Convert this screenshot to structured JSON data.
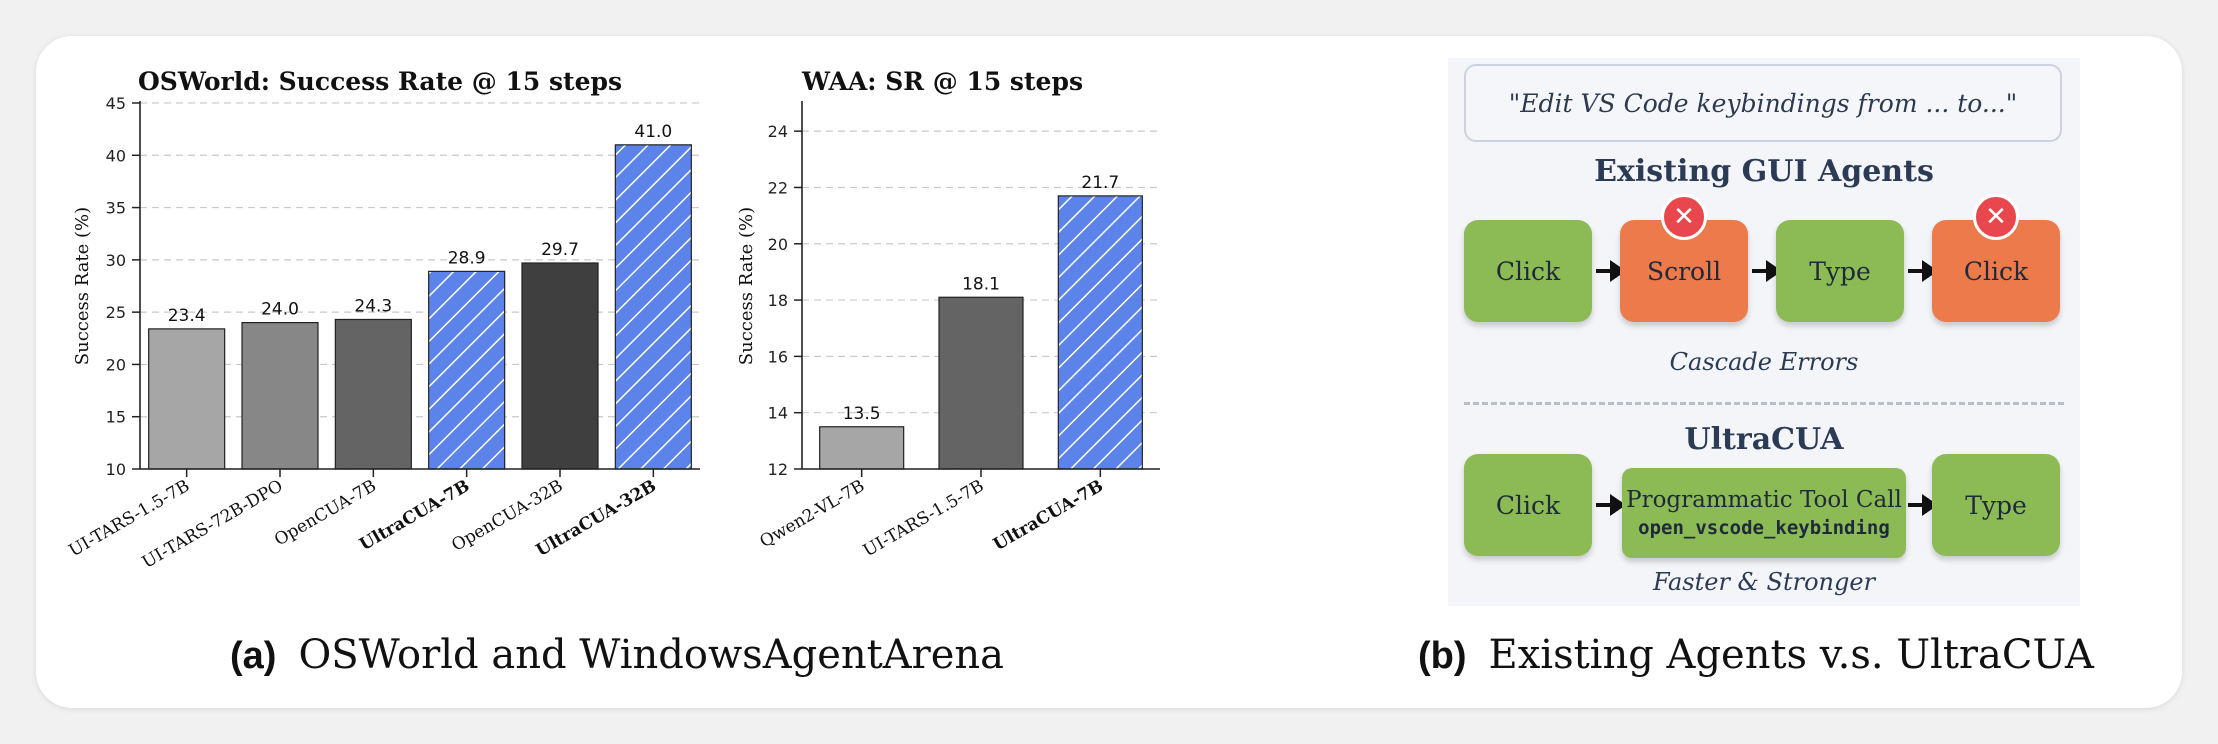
{
  "chart_data": [
    {
      "type": "bar",
      "title": "OSWorld: Success Rate @ 15 steps",
      "ylabel": "Success Rate (%)",
      "ylim": [
        10,
        45
      ],
      "yticks": [
        10,
        15,
        20,
        25,
        30,
        35,
        40,
        45
      ],
      "grid": true,
      "categories": [
        "UI-TARS-1.5-7B",
        "UI-TARS-72B-DPO",
        "OpenCUA-7B",
        "UltraCUA-7B",
        "OpenCUA-32B",
        "UltraCUA-32B"
      ],
      "values": [
        23.4,
        24.0,
        24.3,
        28.9,
        29.7,
        41.0
      ],
      "value_labels": [
        "23.4",
        "24.0",
        "24.3",
        "28.9",
        "29.7",
        "41.0"
      ],
      "colors": [
        "#a6a6a6",
        "#878787",
        "#646464",
        "#5b83ea",
        "#3f3f3f",
        "#5b83ea"
      ],
      "hatched": [
        false,
        false,
        false,
        true,
        false,
        true
      ],
      "bold_labels": [
        false,
        false,
        false,
        true,
        false,
        true
      ]
    },
    {
      "type": "bar",
      "title": "WAA: SR @ 15 steps",
      "ylabel": "Success Rate (%)",
      "ylim": [
        12,
        25
      ],
      "yticks": [
        12,
        14,
        16,
        18,
        20,
        22,
        24
      ],
      "grid": true,
      "categories": [
        "Qwen2-VL-7B",
        "UI-TARS-1.5-7B",
        "UltraCUA-7B"
      ],
      "values": [
        13.5,
        18.1,
        21.7
      ],
      "value_labels": [
        "13.5",
        "18.1",
        "21.7"
      ],
      "colors": [
        "#a6a6a6",
        "#646464",
        "#5b83ea"
      ],
      "hatched": [
        false,
        false,
        true
      ],
      "bold_labels": [
        false,
        false,
        true
      ]
    }
  ],
  "captions": {
    "a_label": "(a)",
    "a_text": "OSWorld and WindowsAgentArena",
    "b_label": "(b)",
    "b_text": "Existing Agents v.s. UltraCUA"
  },
  "diagram": {
    "task": "\"Edit VS Code keybindings from ... to...\"",
    "existing_title": "Existing GUI Agents",
    "existing_steps": [
      "Click",
      "Scroll",
      "Type",
      "Click"
    ],
    "existing_note": "Cascade Errors",
    "ultra_title": "UltraCUA",
    "ultra_step1": "Click",
    "tool_title": "Programmatic Tool Call",
    "tool_name": "open_vscode_keybinding",
    "ultra_step3": "Type",
    "ultra_note": "Faster & Stronger",
    "error_glyph": "✕",
    "colors": {
      "ok": "#8cbb55",
      "error": "#ed7a4a",
      "badge": "#e8474d"
    }
  }
}
